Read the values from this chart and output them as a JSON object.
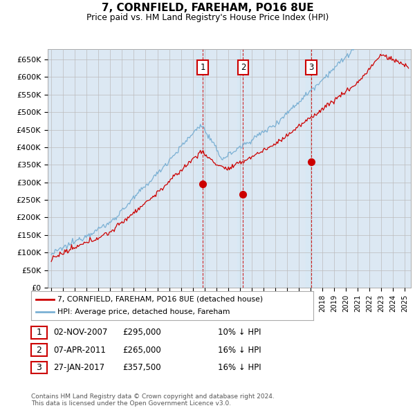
{
  "title": "7, CORNFIELD, FAREHAM, PO16 8UE",
  "subtitle": "Price paid vs. HM Land Registry's House Price Index (HPI)",
  "ylabel_ticks": [
    "£0",
    "£50K",
    "£100K",
    "£150K",
    "£200K",
    "£250K",
    "£300K",
    "£350K",
    "£400K",
    "£450K",
    "£500K",
    "£550K",
    "£600K",
    "£650K"
  ],
  "ytick_values": [
    0,
    50000,
    100000,
    150000,
    200000,
    250000,
    300000,
    350000,
    400000,
    450000,
    500000,
    550000,
    600000,
    650000
  ],
  "ylim": [
    0,
    680000
  ],
  "xlim_start": 1994.7,
  "xlim_end": 2025.5,
  "sale_color": "#cc0000",
  "hpi_color": "#7ab0d4",
  "shade_color": "#d8e8f4",
  "transactions": [
    {
      "num": 1,
      "date_x": 2007.84,
      "date_str": "02-NOV-2007",
      "price": 295000,
      "pct": "10%",
      "dir": "↓"
    },
    {
      "num": 2,
      "date_x": 2011.27,
      "date_str": "07-APR-2011",
      "price": 265000,
      "pct": "16%",
      "dir": "↓"
    },
    {
      "num": 3,
      "date_x": 2017.07,
      "date_str": "27-JAN-2017",
      "price": 357500,
      "pct": "16%",
      "dir": "↓"
    }
  ],
  "legend_entries": [
    {
      "label": "7, CORNFIELD, FAREHAM, PO16 8UE (detached house)",
      "color": "#cc0000"
    },
    {
      "label": "HPI: Average price, detached house, Fareham",
      "color": "#7ab0d4"
    }
  ],
  "footer": "Contains HM Land Registry data © Crown copyright and database right 2024.\nThis data is licensed under the Open Government Licence v3.0.",
  "background_color": "#dce8f3",
  "plot_bg": "#ffffff"
}
